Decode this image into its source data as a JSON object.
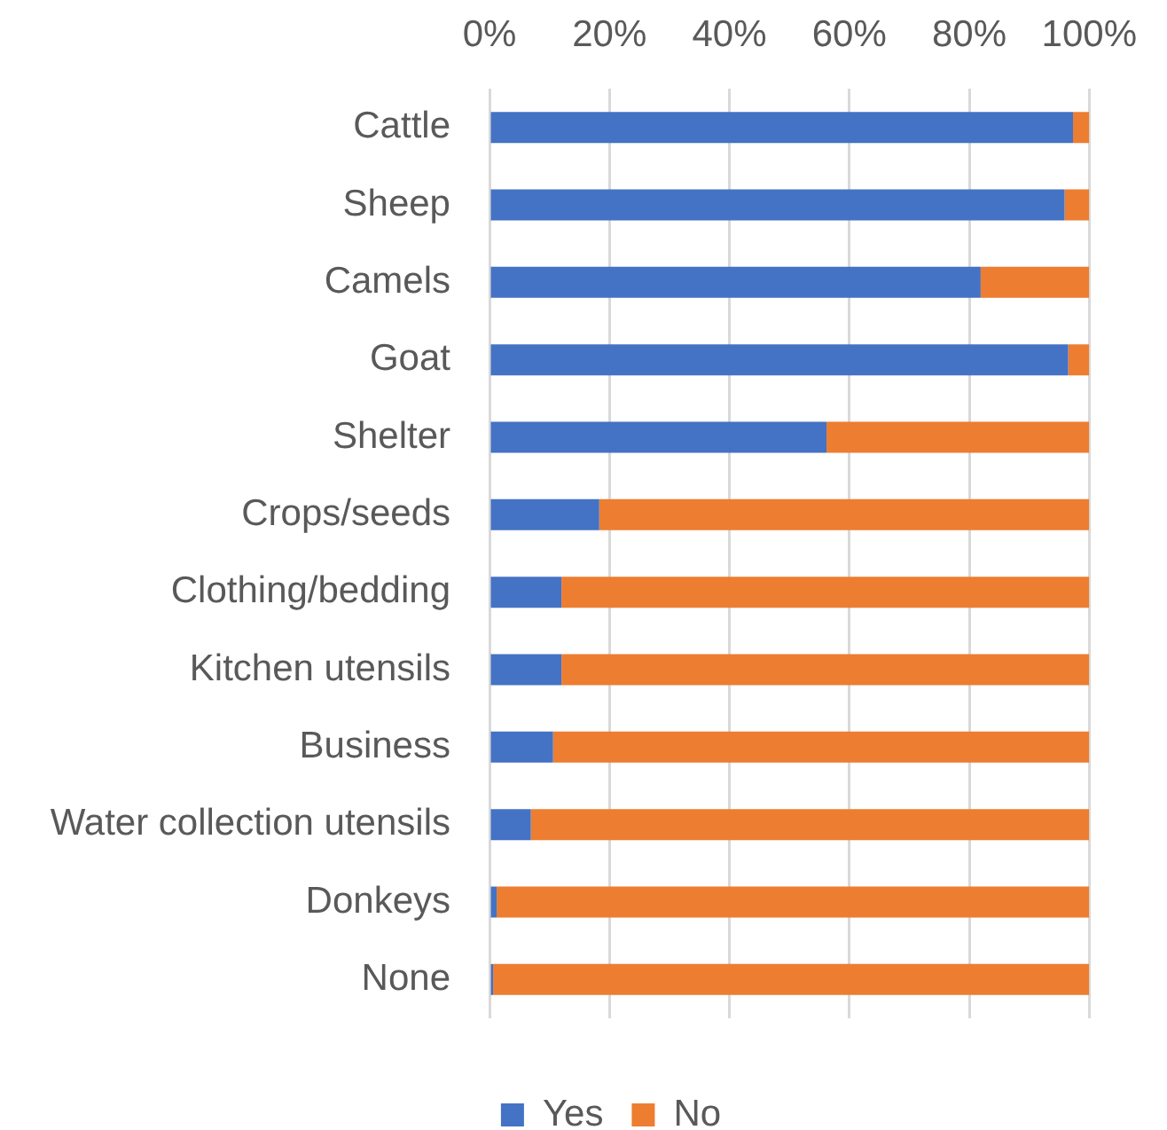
{
  "chart_data": {
    "type": "bar",
    "orientation": "horizontal",
    "stacked": true,
    "categories": [
      "Cattle",
      "Sheep",
      "Camels",
      "Goat",
      "Shelter",
      "Crops/seeds",
      "Clothing/bedding",
      "Kitchen utensils",
      "Business",
      "Water collection utensils",
      "Donkeys",
      "None"
    ],
    "series": [
      {
        "name": "Yes",
        "color": "#4472c4",
        "values": [
          97.3,
          95.9,
          81.9,
          96.5,
          56.2,
          18.3,
          12,
          12,
          10.6,
          6.9,
          1.2,
          0.6
        ]
      },
      {
        "name": "No",
        "color": "#ed7d31",
        "values": [
          2.7,
          4.1,
          18.1,
          3.5,
          43.8,
          81.7,
          88,
          88,
          89.4,
          93.1,
          98.8,
          99.4
        ]
      }
    ],
    "xlim": [
      0,
      100
    ],
    "xticks": [
      {
        "value": 0,
        "label": "0%"
      },
      {
        "value": 20,
        "label": "20%"
      },
      {
        "value": 40,
        "label": "40%"
      },
      {
        "value": 60,
        "label": "60%"
      },
      {
        "value": 80,
        "label": "80%"
      },
      {
        "value": 100,
        "label": "100%"
      }
    ],
    "grid": "x",
    "legend": "bottom"
  }
}
